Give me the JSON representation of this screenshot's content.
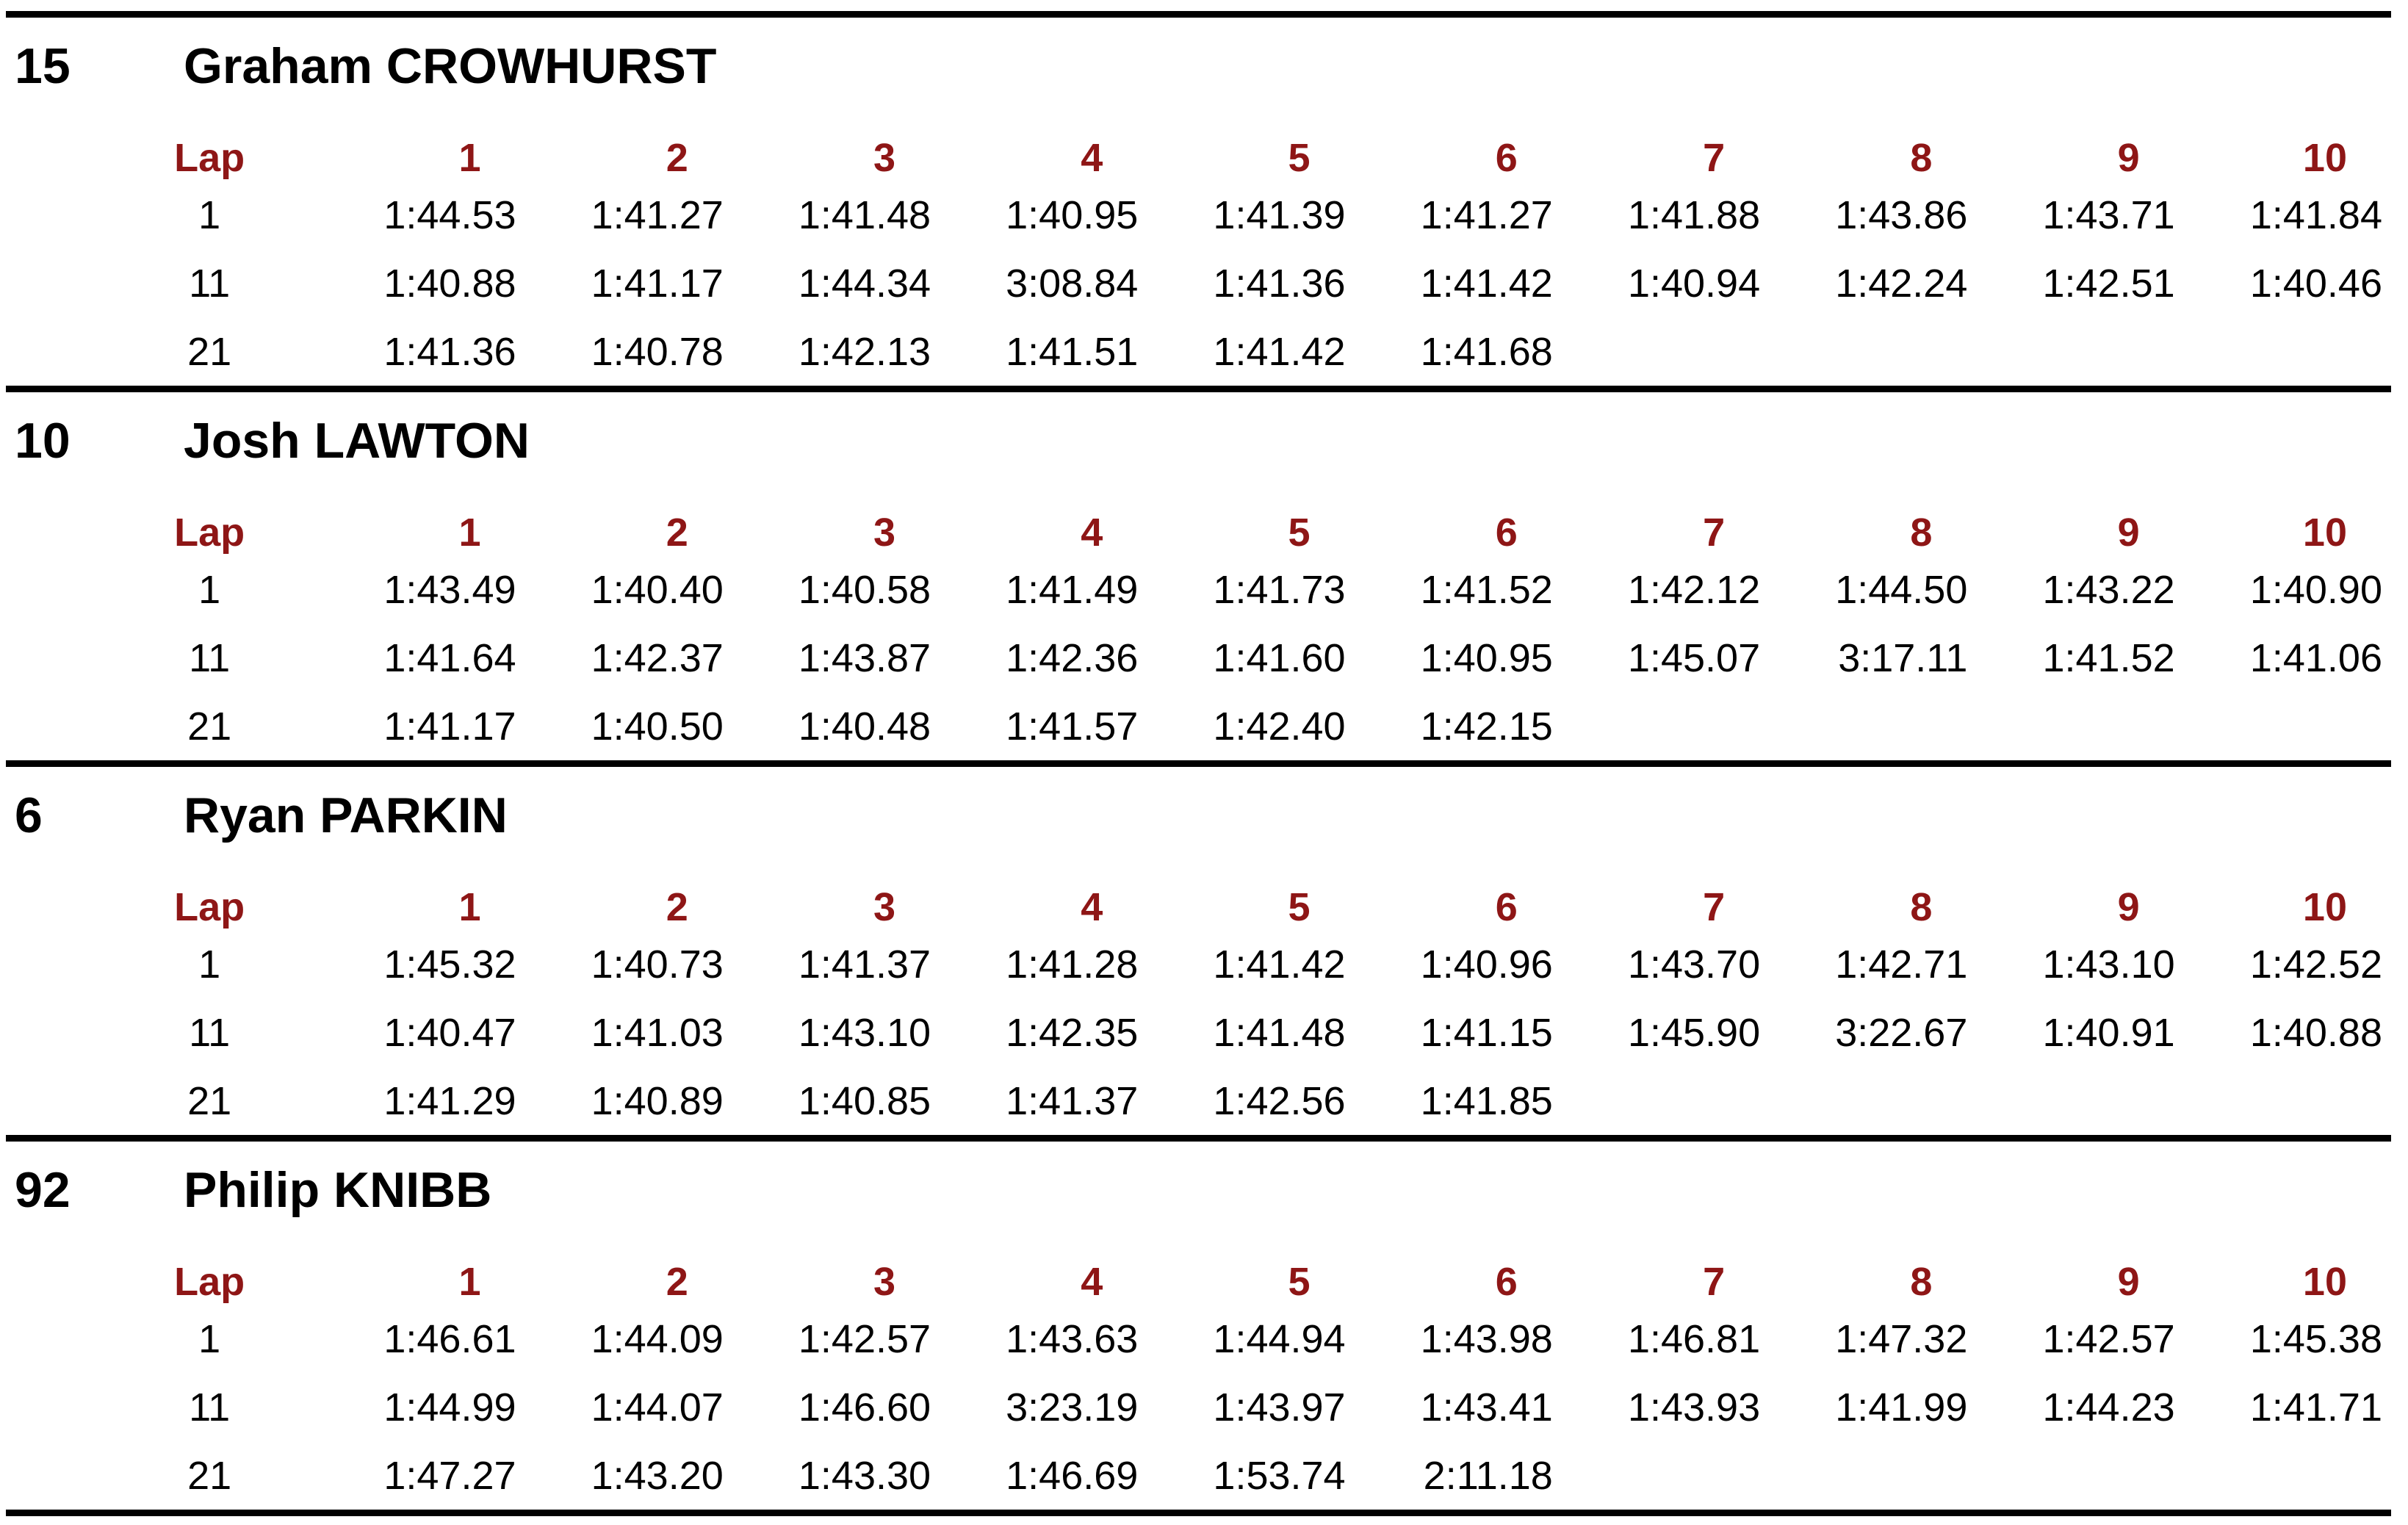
{
  "page": {
    "background": "#ffffff",
    "text_color": "#000000",
    "accent_color": "#8e1616",
    "rule_color": "#000000"
  },
  "table": {
    "lap_header": "Lap",
    "lap_columns": [
      "1",
      "2",
      "3",
      "4",
      "5",
      "6",
      "7",
      "8",
      "9",
      "10"
    ]
  },
  "drivers": [
    {
      "number": "15",
      "name": "Graham CROWHURST",
      "rows": [
        {
          "start": "1",
          "times": [
            "1:44.53",
            "1:41.27",
            "1:41.48",
            "1:40.95",
            "1:41.39",
            "1:41.27",
            "1:41.88",
            "1:43.86",
            "1:43.71",
            "1:41.84"
          ]
        },
        {
          "start": "11",
          "times": [
            "1:40.88",
            "1:41.17",
            "1:44.34",
            "3:08.84",
            "1:41.36",
            "1:41.42",
            "1:40.94",
            "1:42.24",
            "1:42.51",
            "1:40.46"
          ]
        },
        {
          "start": "21",
          "times": [
            "1:41.36",
            "1:40.78",
            "1:42.13",
            "1:41.51",
            "1:41.42",
            "1:41.68"
          ]
        }
      ]
    },
    {
      "number": "10",
      "name": "Josh LAWTON",
      "rows": [
        {
          "start": "1",
          "times": [
            "1:43.49",
            "1:40.40",
            "1:40.58",
            "1:41.49",
            "1:41.73",
            "1:41.52",
            "1:42.12",
            "1:44.50",
            "1:43.22",
            "1:40.90"
          ]
        },
        {
          "start": "11",
          "times": [
            "1:41.64",
            "1:42.37",
            "1:43.87",
            "1:42.36",
            "1:41.60",
            "1:40.95",
            "1:45.07",
            "3:17.11",
            "1:41.52",
            "1:41.06"
          ]
        },
        {
          "start": "21",
          "times": [
            "1:41.17",
            "1:40.50",
            "1:40.48",
            "1:41.57",
            "1:42.40",
            "1:42.15"
          ]
        }
      ]
    },
    {
      "number": "6",
      "name": "Ryan PARKIN",
      "rows": [
        {
          "start": "1",
          "times": [
            "1:45.32",
            "1:40.73",
            "1:41.37",
            "1:41.28",
            "1:41.42",
            "1:40.96",
            "1:43.70",
            "1:42.71",
            "1:43.10",
            "1:42.52"
          ]
        },
        {
          "start": "11",
          "times": [
            "1:40.47",
            "1:41.03",
            "1:43.10",
            "1:42.35",
            "1:41.48",
            "1:41.15",
            "1:45.90",
            "3:22.67",
            "1:40.91",
            "1:40.88"
          ]
        },
        {
          "start": "21",
          "times": [
            "1:41.29",
            "1:40.89",
            "1:40.85",
            "1:41.37",
            "1:42.56",
            "1:41.85"
          ]
        }
      ]
    },
    {
      "number": "92",
      "name": "Philip KNIBB",
      "rows": [
        {
          "start": "1",
          "times": [
            "1:46.61",
            "1:44.09",
            "1:42.57",
            "1:43.63",
            "1:44.94",
            "1:43.98",
            "1:46.81",
            "1:47.32",
            "1:42.57",
            "1:45.38"
          ]
        },
        {
          "start": "11",
          "times": [
            "1:44.99",
            "1:44.07",
            "1:46.60",
            "3:23.19",
            "1:43.97",
            "1:43.41",
            "1:43.93",
            "1:41.99",
            "1:44.23",
            "1:41.71"
          ]
        },
        {
          "start": "21",
          "times": [
            "1:47.27",
            "1:43.20",
            "1:43.30",
            "1:46.69",
            "1:53.74",
            "2:11.18"
          ]
        }
      ]
    }
  ]
}
